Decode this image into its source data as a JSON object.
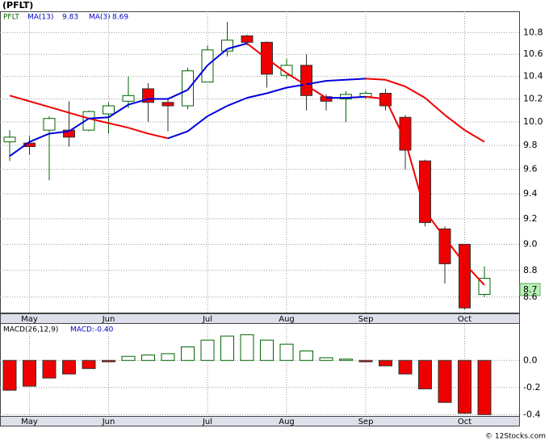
{
  "chart_data": [
    {
      "type": "candlestick",
      "title": "(PFLT)",
      "symbol": "PFLT",
      "categories": [
        null,
        "May",
        null,
        null,
        null,
        "Jun",
        null,
        null,
        null,
        null,
        "Jul",
        null,
        null,
        null,
        "Aug",
        null,
        null,
        null,
        "Sep",
        null,
        null,
        null,
        null,
        "Oct",
        null
      ],
      "open": [
        9.83,
        9.82,
        9.93,
        9.93,
        9.93,
        10.07,
        10.18,
        10.29,
        10.17,
        10.14,
        10.35,
        10.63,
        10.77,
        10.71,
        10.41,
        10.5,
        10.22,
        10.2,
        10.22,
        10.25,
        10.04,
        9.67,
        9.12,
        9.0,
        8.62
      ],
      "high": [
        9.93,
        9.88,
        10.05,
        10.18,
        10.1,
        10.17,
        10.4,
        10.34,
        10.21,
        10.48,
        10.68,
        10.9,
        10.78,
        10.72,
        10.56,
        10.6,
        10.24,
        10.27,
        10.27,
        10.29,
        10.06,
        9.68,
        9.14,
        9.0,
        8.83
      ],
      "low": [
        9.67,
        9.72,
        9.51,
        9.79,
        9.92,
        9.9,
        10.12,
        10.0,
        9.92,
        10.11,
        10.35,
        10.58,
        10.68,
        10.3,
        10.38,
        10.1,
        10.1,
        10.0,
        10.2,
        10.1,
        9.6,
        9.14,
        8.7,
        8.51,
        8.6
      ],
      "close": [
        9.87,
        9.79,
        10.03,
        9.87,
        10.09,
        10.14,
        10.23,
        10.17,
        10.14,
        10.45,
        10.64,
        10.73,
        10.71,
        10.42,
        10.5,
        10.23,
        10.18,
        10.24,
        10.25,
        10.14,
        9.76,
        9.17,
        8.85,
        8.52,
        8.74
      ],
      "up_color": "#006400",
      "down_color": "#ee0000",
      "last_price_label": "8.7",
      "series": [
        {
          "name": "MA(13)",
          "values": [
            10.23,
            10.18,
            10.13,
            10.08,
            10.03,
            9.99,
            9.95,
            9.9,
            9.86,
            9.92,
            10.05,
            10.14,
            10.21,
            10.25,
            10.3,
            10.33,
            10.36,
            10.37,
            10.38,
            10.37,
            10.31,
            10.21,
            10.06,
            9.93,
            9.83
          ]
        },
        {
          "name": "MA(3)",
          "values": [
            9.71,
            9.83,
            9.9,
            9.92,
            10.03,
            10.04,
            10.15,
            10.2,
            10.2,
            10.28,
            10.5,
            10.65,
            10.7,
            10.56,
            10.43,
            10.32,
            10.21,
            10.21,
            10.22,
            10.2,
            9.84,
            9.26,
            9.05,
            8.85,
            8.69
          ]
        }
      ],
      "rising_color": "#0000dd",
      "falling_color": "#ee0000",
      "log_scale": true,
      "grid": true,
      "ylim": [
        8.48,
        11.0
      ],
      "yticks": [
        {
          "value": 8.6,
          "label": "8.6"
        },
        8.8,
        {
          "value": 9.0,
          "label": "9.0"
        },
        9.2,
        9.4,
        9.6,
        9.8,
        {
          "value": 10.0,
          "label": "10.0"
        },
        10.2,
        10.4,
        10.6,
        10.8
      ]
    },
    {
      "type": "bar",
      "annotation": "MACD:-0.40",
      "series": [
        {
          "name": "MACD(26,12,9)",
          "values": [
            -0.22,
            -0.19,
            -0.13,
            -0.1,
            -0.06,
            -0.01,
            0.03,
            0.04,
            0.05,
            0.1,
            0.15,
            0.18,
            0.19,
            0.15,
            0.12,
            0.07,
            0.02,
            0.01,
            -0.01,
            -0.04,
            -0.1,
            -0.21,
            -0.31,
            -0.39,
            -0.4
          ]
        }
      ],
      "positive_color": "#006400",
      "negative_color": "#ee0000",
      "grid": true,
      "ylim": [
        -0.41,
        0.27
      ],
      "yticks": [
        {
          "value": -0.4,
          "label": "-0.4"
        },
        {
          "value": -0.2,
          "label": "-0.2"
        },
        {
          "value": 0.0,
          "label": "0.0"
        }
      ]
    }
  ],
  "footer": "© 12Stocks.com"
}
